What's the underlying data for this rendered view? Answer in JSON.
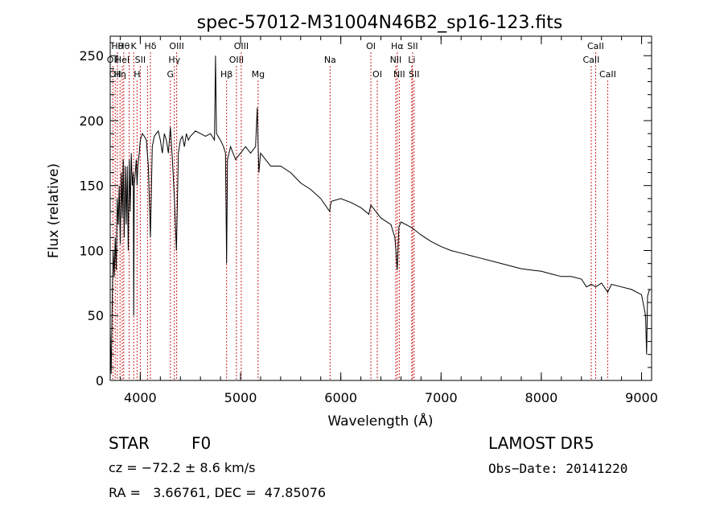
{
  "chart_data": {
    "type": "line",
    "title": "spec-57012-M31004N46B2_sp16-123.fits",
    "xlabel": "Wavelength (Å)",
    "ylabel": "Flux (relative)",
    "xlim": [
      3700,
      9100
    ],
    "ylim": [
      0,
      265
    ],
    "xticks": [
      4000,
      5000,
      6000,
      7000,
      8000,
      9000
    ],
    "yticks": [
      0,
      50,
      100,
      150,
      200,
      250
    ],
    "grid": false,
    "line_color": "#000000",
    "marker_color": "#cc2222",
    "x": [
      3700,
      3710,
      3720,
      3730,
      3740,
      3750,
      3760,
      3770,
      3780,
      3790,
      3800,
      3810,
      3820,
      3830,
      3840,
      3850,
      3860,
      3870,
      3880,
      3890,
      3900,
      3910,
      3920,
      3930,
      3934,
      3940,
      3950,
      3960,
      3968,
      3975,
      3990,
      4000,
      4020,
      4040,
      4060,
      4080,
      4101,
      4120,
      4140,
      4160,
      4180,
      4200,
      4220,
      4240,
      4260,
      4280,
      4300,
      4320,
      4340,
      4360,
      4380,
      4400,
      4420,
      4440,
      4460,
      4480,
      4500,
      4550,
      4600,
      4650,
      4700,
      4740,
      4750,
      4760,
      4800,
      4830,
      4850,
      4861,
      4870,
      4900,
      4950,
      5000,
      5050,
      5100,
      5150,
      5167,
      5172,
      5183,
      5200,
      5250,
      5300,
      5400,
      5500,
      5600,
      5700,
      5800,
      5890,
      5896,
      5910,
      6000,
      6100,
      6200,
      6280,
      6300,
      6400,
      6500,
      6540,
      6563,
      6580,
      6600,
      6700,
      6800,
      6900,
      7000,
      7100,
      7200,
      7300,
      7400,
      7500,
      7600,
      7700,
      7800,
      7900,
      8000,
      8100,
      8200,
      8300,
      8400,
      8450,
      8498,
      8542,
      8600,
      8662,
      8700,
      8800,
      8900,
      9000,
      9040,
      9050,
      9060,
      9080
    ],
    "series": [
      {
        "values": [
          40,
          5,
          60,
          100,
          80,
          110,
          85,
          140,
          120,
          150,
          105,
          160,
          125,
          170,
          110,
          165,
          120,
          165,
          100,
          170,
          130,
          175,
          150,
          160,
          50,
          150,
          160,
          170,
          150,
          165,
          175,
          185,
          190,
          188,
          185,
          165,
          110,
          180,
          188,
          190,
          192,
          185,
          175,
          190,
          185,
          175,
          195,
          170,
          140,
          100,
          175,
          185,
          188,
          180,
          190,
          185,
          188,
          192,
          190,
          188,
          190,
          185,
          250,
          190,
          185,
          180,
          175,
          90,
          170,
          180,
          170,
          175,
          180,
          175,
          180,
          210,
          190,
          160,
          175,
          170,
          165,
          165,
          160,
          152,
          147,
          140,
          130,
          135,
          138,
          140,
          137,
          133,
          128,
          135,
          125,
          120,
          110,
          85,
          118,
          122,
          118,
          112,
          107,
          103,
          100,
          98,
          96,
          94,
          92,
          90,
          88,
          86,
          85,
          84,
          82,
          80,
          80,
          78,
          72,
          74,
          72,
          75,
          68,
          74,
          72,
          70,
          66,
          50,
          20,
          65,
          70
        ]
      }
    ],
    "lines": [
      {
        "wavelength": 3727,
        "label": "OII",
        "row": 1
      },
      {
        "wavelength": 3750,
        "label": "OII",
        "row": 2
      },
      {
        "wavelength": 3771,
        "label": "Hθ",
        "row": 0
      },
      {
        "wavelength": 3798,
        "label": "Hη",
        "row": 2
      },
      {
        "wavelength": 3820,
        "label": "HeI",
        "row": 1
      },
      {
        "wavelength": 3835,
        "label": "Hθ",
        "row": 0
      },
      {
        "wavelength": 3889,
        "label": "",
        "row": 0
      },
      {
        "wavelength": 3934,
        "label": "K",
        "row": 0
      },
      {
        "wavelength": 3968,
        "label": "H",
        "row": 2
      },
      {
        "wavelength": 4000,
        "label": "SII",
        "row": 1
      },
      {
        "wavelength": 4072,
        "label": "",
        "row": 1
      },
      {
        "wavelength": 4101,
        "label": "Hδ",
        "row": 0
      },
      {
        "wavelength": 4300,
        "label": "G",
        "row": 2
      },
      {
        "wavelength": 4340,
        "label": "Hγ",
        "row": 1
      },
      {
        "wavelength": 4363,
        "label": "OIII",
        "row": 0
      },
      {
        "wavelength": 4861,
        "label": "Hβ",
        "row": 2
      },
      {
        "wavelength": 4959,
        "label": "OIII",
        "row": 1
      },
      {
        "wavelength": 5007,
        "label": "OIII",
        "row": 0
      },
      {
        "wavelength": 5175,
        "label": "Mg",
        "row": 2
      },
      {
        "wavelength": 5893,
        "label": "Na",
        "row": 1
      },
      {
        "wavelength": 6300,
        "label": "OI",
        "row": 0
      },
      {
        "wavelength": 6364,
        "label": "OI",
        "row": 2
      },
      {
        "wavelength": 6548,
        "label": "NII",
        "row": 1
      },
      {
        "wavelength": 6563,
        "label": "Hα",
        "row": 0
      },
      {
        "wavelength": 6583,
        "label": "NII",
        "row": 2
      },
      {
        "wavelength": 6708,
        "label": "Li",
        "row": 1
      },
      {
        "wavelength": 6716,
        "label": "SII",
        "row": 0
      },
      {
        "wavelength": 6731,
        "label": "SII",
        "row": 2
      },
      {
        "wavelength": 8498,
        "label": "CaII",
        "row": 1
      },
      {
        "wavelength": 8542,
        "label": "CaII",
        "row": 0
      },
      {
        "wavelength": 8662,
        "label": "CaII",
        "row": 2
      }
    ]
  },
  "info": {
    "class": "STAR",
    "subclass": "F0",
    "survey": "LAMOST DR5",
    "cz": "cz = −72.2 ± 8.6 km/s",
    "obs_date": "Obs−Date: 20141220",
    "coords": "RA =   3.66761, DEC =  47.85076"
  }
}
